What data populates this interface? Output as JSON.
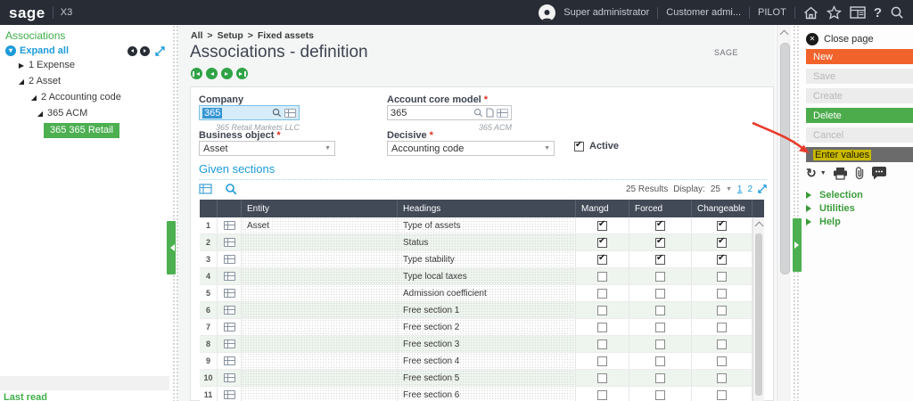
{
  "topbar": {
    "brand": "sage",
    "product": "X3",
    "user": "Super administrator",
    "role": "Customer admi...",
    "endpoint": "PILOT"
  },
  "sidebar": {
    "title": "Associations",
    "expand_all": "Expand all",
    "tree": [
      {
        "label": "1 Expense",
        "level": 0,
        "state": "collapsed"
      },
      {
        "label": "2 Asset",
        "level": 0,
        "state": "expanded"
      },
      {
        "label": "2 Accounting code",
        "level": 1,
        "state": "expanded"
      },
      {
        "label": "365 ACM",
        "level": 2,
        "state": "expanded"
      },
      {
        "label": "365 365 Retail",
        "level": 3,
        "state": "selected"
      }
    ],
    "footer": "Last read"
  },
  "main": {
    "breadcrumb": [
      "All",
      "Setup",
      "Fixed assets"
    ],
    "title": "Associations - definition",
    "folder": "SAGE",
    "form": {
      "company_label": "Company",
      "company_value": "365",
      "company_helper": "365 Retail Markets LLC",
      "acm_label": "Account core model",
      "acm_value": "365",
      "acm_helper": "365 ACM",
      "business_object_label": "Business object",
      "business_object_value": "Asset",
      "decisive_label": "Decisive",
      "decisive_value": "Accounting code",
      "active_label": "Active",
      "active_checked": true
    },
    "section_title": "Given sections",
    "results": {
      "count": "25 Results",
      "display_label": "Display:",
      "display_value": "25",
      "pages": [
        "1",
        "2"
      ]
    },
    "table": {
      "headers": [
        "Entity",
        "Headings",
        "Mangd",
        "Forced",
        "Changeable"
      ],
      "rows": [
        {
          "num": "1",
          "entity": "Asset",
          "heading": "Type of assets",
          "mangd": true,
          "forced": true,
          "changeable": true
        },
        {
          "num": "2",
          "entity": "",
          "heading": "Status",
          "mangd": true,
          "forced": true,
          "changeable": true
        },
        {
          "num": "3",
          "entity": "",
          "heading": "Type stability",
          "mangd": true,
          "forced": true,
          "changeable": true
        },
        {
          "num": "4",
          "entity": "",
          "heading": "Type local taxes",
          "mangd": false,
          "forced": false,
          "changeable": false
        },
        {
          "num": "5",
          "entity": "",
          "heading": "Admission coefficient",
          "mangd": false,
          "forced": false,
          "changeable": false
        },
        {
          "num": "6",
          "entity": "",
          "heading": "Free section 1",
          "mangd": false,
          "forced": false,
          "changeable": false
        },
        {
          "num": "7",
          "entity": "",
          "heading": "Free section 2",
          "mangd": false,
          "forced": false,
          "changeable": false
        },
        {
          "num": "8",
          "entity": "",
          "heading": "Free section 3",
          "mangd": false,
          "forced": false,
          "changeable": false
        },
        {
          "num": "9",
          "entity": "",
          "heading": "Free section 4",
          "mangd": false,
          "forced": false,
          "changeable": false
        },
        {
          "num": "10",
          "entity": "",
          "heading": "Free section 5",
          "mangd": false,
          "forced": false,
          "changeable": false
        },
        {
          "num": "11",
          "entity": "",
          "heading": "Free section 6",
          "mangd": false,
          "forced": false,
          "changeable": false
        }
      ]
    }
  },
  "panel": {
    "close_label": "Close page",
    "buttons": [
      {
        "label": "New",
        "variant": "primary-orange",
        "enabled": true
      },
      {
        "label": "Save",
        "variant": "disabled",
        "enabled": false
      },
      {
        "label": "Create",
        "variant": "disabled",
        "enabled": false
      },
      {
        "label": "Delete",
        "variant": "primary-green",
        "enabled": true
      },
      {
        "label": "Cancel",
        "variant": "disabled",
        "enabled": false
      },
      {
        "label": "Enter values",
        "variant": "dark",
        "highlighted": true,
        "enabled": true
      }
    ],
    "links": [
      "Selection",
      "Utilities",
      "Help"
    ]
  },
  "colors": {
    "topbar_bg": "#272c35",
    "table_header_bg": "#424a57",
    "accent_green": "#4cac4c",
    "accent_orange": "#f2632c",
    "accent_blue": "#1d9bd9",
    "highlight_yellow": "#c9ba00",
    "annotation_red": "#e73b2b"
  }
}
